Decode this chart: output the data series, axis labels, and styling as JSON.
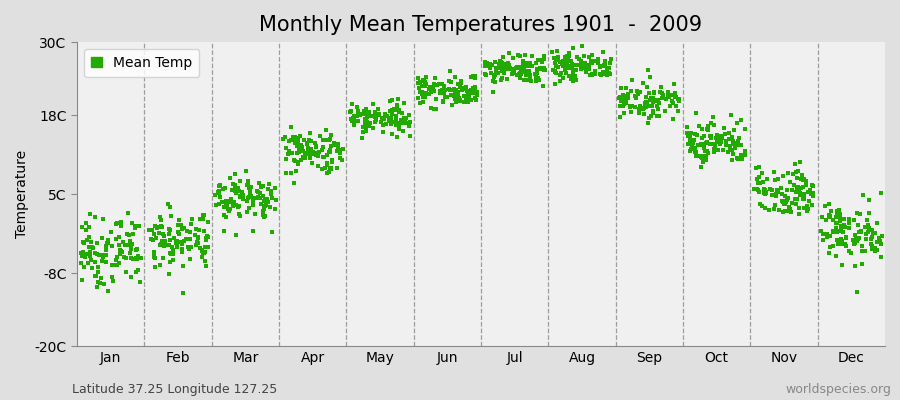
{
  "title": "Monthly Mean Temperatures 1901  -  2009",
  "ylabel": "Temperature",
  "subtitle_left": "Latitude 37.25 Longitude 127.25",
  "subtitle_right": "worldspecies.org",
  "legend_label": "Mean Temp",
  "ylim": [
    -20,
    30
  ],
  "yticks": [
    -20,
    -8,
    5,
    18,
    30
  ],
  "ytick_labels": [
    "-20C",
    "-8C",
    "5C",
    "18C",
    "30C"
  ],
  "months": [
    "Jan",
    "Feb",
    "Mar",
    "Apr",
    "May",
    "Jun",
    "Jul",
    "Aug",
    "Sep",
    "Oct",
    "Nov",
    "Dec"
  ],
  "monthly_mean": [
    -4.5,
    -2.5,
    4.5,
    12.0,
    17.5,
    22.0,
    25.5,
    26.0,
    20.5,
    13.5,
    5.5,
    -1.5
  ],
  "monthly_std": [
    2.8,
    2.5,
    2.0,
    1.8,
    1.5,
    1.3,
    1.2,
    1.2,
    1.3,
    1.8,
    2.0,
    2.5
  ],
  "n_years": 109,
  "dot_color": "#22aa00",
  "dot_size": 5,
  "outer_bg": "#e0e0e0",
  "inner_bg": "#f0f0f0",
  "title_fontsize": 15,
  "axis_fontsize": 10,
  "tick_fontsize": 10,
  "subtitle_fontsize": 9
}
